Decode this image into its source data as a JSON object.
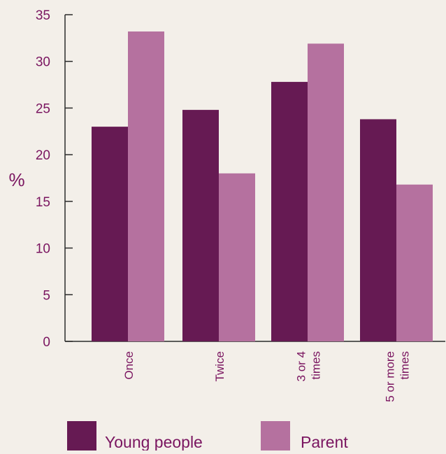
{
  "chart_data": {
    "type": "bar",
    "ylabel": "%",
    "xlabel": "",
    "ylim": [
      0,
      35
    ],
    "yticks": [
      0,
      5,
      10,
      15,
      20,
      25,
      30,
      35
    ],
    "categories": [
      "Once",
      "Twice",
      "3 or 4\ntimes",
      "5 or more\ntimes"
    ],
    "series": [
      {
        "name": "Young people",
        "color": "#661a53",
        "values": [
          23,
          24.8,
          27.8,
          23.8
        ]
      },
      {
        "name": "Parent",
        "color": "#b5719f",
        "values": [
          33.2,
          18,
          31.9,
          16.8
        ]
      }
    ],
    "legend_position": "bottom",
    "grid": false
  },
  "colors": {
    "background": "#f3efe9",
    "axis": "#2b2b2b",
    "text": "#7a1560"
  }
}
